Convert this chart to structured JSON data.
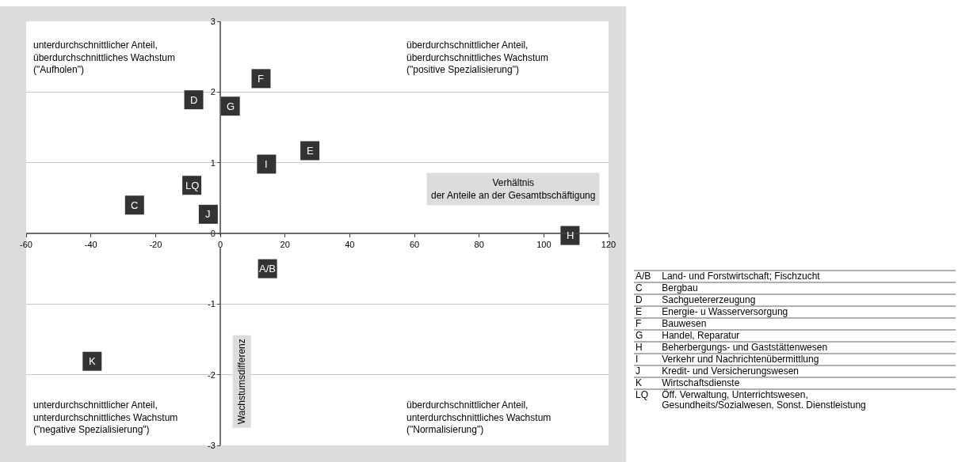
{
  "chart_data": {
    "type": "scatter",
    "xlabel": "Verhältnis der Anteile an der Gesamtbschäftigung",
    "ylabel": "Wachstumsdifferenz",
    "x": [
      14.6,
      -26.5,
      -8.2,
      27.7,
      12.6,
      3.1,
      108.1,
      14.3,
      -3.7,
      -39.6,
      -8.8
    ],
    "values": [
      -0.5,
      0.4,
      1.89,
      1.17,
      2.19,
      1.8,
      -0.03,
      0.98,
      0.27,
      -1.81,
      0.68
    ],
    "color": "#333333",
    "marker": "square",
    "xlim": [
      -60,
      120
    ],
    "xticks": [
      -60,
      -40,
      -20,
      0,
      20,
      40,
      60,
      80,
      100,
      120
    ],
    "ylim": [
      -3,
      3
    ],
    "yticks": [
      -3,
      -2,
      -1,
      0,
      1,
      2,
      3
    ],
    "grid": "y",
    "annotations": [
      {
        "text": "A/B",
        "x": 14.6,
        "y": -0.5
      },
      {
        "text": "C",
        "x": -26.5,
        "y": 0.4
      },
      {
        "text": "D",
        "x": -8.2,
        "y": 1.89
      },
      {
        "text": "E",
        "x": 27.7,
        "y": 1.17
      },
      {
        "text": "F",
        "x": 12.6,
        "y": 2.19
      },
      {
        "text": "G",
        "x": 3.1,
        "y": 1.8
      },
      {
        "text": "H",
        "x": 108.1,
        "y": -0.03
      },
      {
        "text": "I",
        "x": 14.3,
        "y": 0.98
      },
      {
        "text": "J",
        "x": -3.7,
        "y": 0.27
      },
      {
        "text": "K",
        "x": -39.6,
        "y": -1.81
      },
      {
        "text": "LQ",
        "x": -8.8,
        "y": 0.68
      },
      "unterdurchschnittlicher Anteil,\nüberdurchschnittliches Wachstum\n(\"Aufholen\")",
      "überdurchschnittlicher Anteil,\nüberdurchschnittliches Wachstum\n(\"positive Spezialisierung\")",
      "unterdurchschnittlicher Anteil,\nunterdurchschnittliches Wachstum\n(\"negative Spezialisierung\")",
      "überdurchschnittlicher Anteil,\nunterdurchschnittliches Wachstum\n(\"Normalisierung\")",
      "A/B\tLand- und Forstwirtschaft; Fischzucht",
      "C\tBergbau",
      "D\tSachguetererzeugung",
      "E\tEnergie- u Wasserversorgung",
      "F\tBauwesen",
      "G\tHandel, Reparatur",
      "H\tBeherbergungs- und Gaststättenwesen",
      "I\tVerkehr und Nachrichtenübermittlung",
      "J\tKredit- und Versicherungswesen",
      "K\tWirtschaftsdienste",
      "LQ\tÖff. Verwaltung, Unterrichtswesen,\nGesundheits/Sozialwesen, Sonst. Dienstleistung"
    ]
  }
}
